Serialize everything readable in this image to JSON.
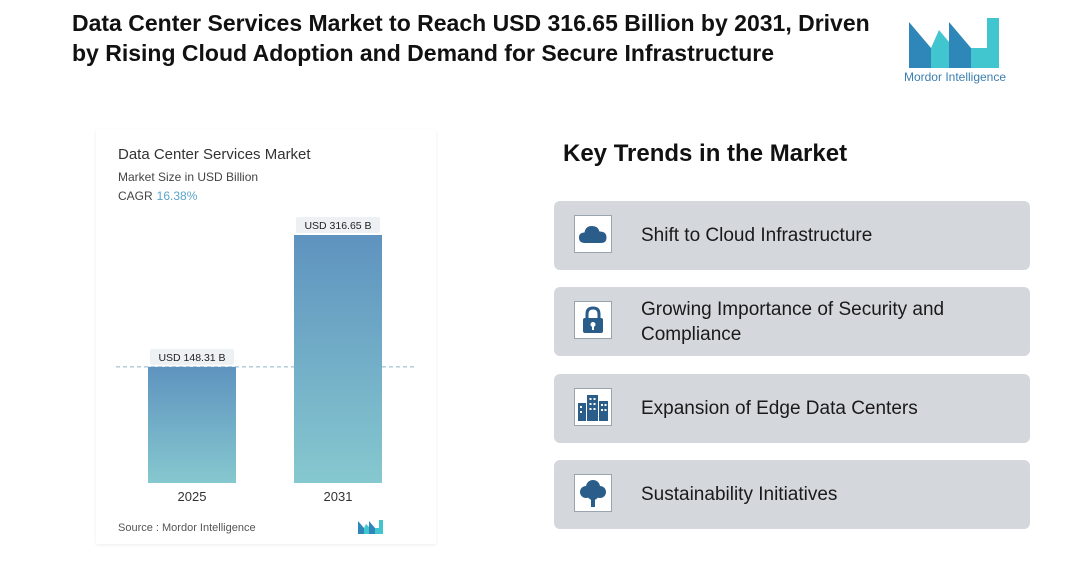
{
  "headline": "Data Center Services Market to Reach USD 316.65 Billion by 2031, Driven by Rising Cloud Adoption and Demand for Secure Infrastructure",
  "brand": {
    "name": "Mordor Intelligence",
    "primary_color": "#2f86b8",
    "secondary_color": "#41c5cf"
  },
  "chart_card": {
    "title": "Data Center Services Market",
    "subtitle": "Market Size in USD Billion",
    "cagr_label": "CAGR",
    "cagr_value": "16.38%",
    "source": "Source :  Mordor Intelligence"
  },
  "chart_data": {
    "type": "bar",
    "categories": [
      "2025",
      "2031"
    ],
    "values": [
      148.31,
      316.65
    ],
    "data_labels": [
      "USD 148.31 B",
      "USD 316.65 B"
    ],
    "title": "Data Center Services Market",
    "subtitle": "Market Size in USD Billion",
    "ylabel": "",
    "xlabel": "",
    "ylim": [
      0,
      316.65
    ],
    "grid": false,
    "reference_line": "dashed line at 2025 value",
    "bar_gradient": {
      "top": "#5e93bf",
      "bottom": "#86c8cf"
    }
  },
  "key_trends": {
    "title": "Key Trends in the Market",
    "items": [
      {
        "label": "Shift to Cloud Infrastructure",
        "icon": "cloud-icon"
      },
      {
        "label": "Growing Importance of Security and Compliance",
        "icon": "padlock-icon"
      },
      {
        "label": "Expansion of Edge Data Centers",
        "icon": "buildings-icon"
      },
      {
        "label": "Sustainability Initiatives",
        "icon": "tree-icon"
      }
    ]
  }
}
